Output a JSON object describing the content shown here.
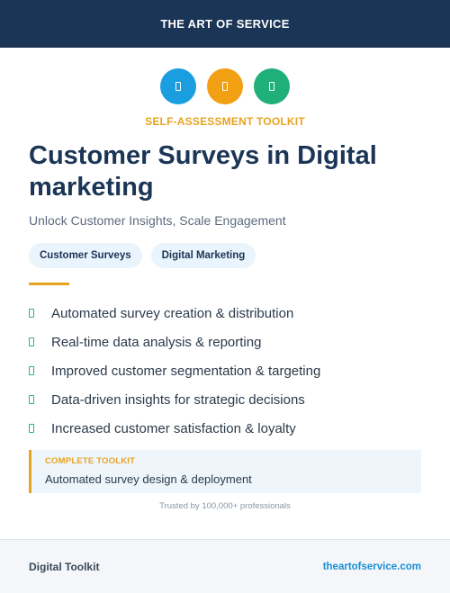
{
  "header": {
    "brand": "THE ART OF SERVICE"
  },
  "icons": [
    {
      "name": "blue-badge-icon",
      "color": "#1a9ee0"
    },
    {
      "name": "orange-badge-icon",
      "color": "#f0a012"
    },
    {
      "name": "green-badge-icon",
      "color": "#1fb07a"
    }
  ],
  "kicker": "SELF-ASSESSMENT TOOLKIT",
  "title": "Customer Surveys in Digital marketing",
  "subtitle": "Unlock Customer Insights, Scale Engagement",
  "tags": [
    "Customer Surveys",
    "Digital Marketing"
  ],
  "features": [
    "Automated survey creation & distribution",
    "Real-time data analysis & reporting",
    "Improved customer segmentation & targeting",
    "Data-driven insights for strategic decisions",
    "Increased customer satisfaction & loyalty"
  ],
  "callout": {
    "label": "COMPLETE TOOLKIT",
    "text": "Automated survey design & deployment"
  },
  "trusted": "Trusted by 100,000+ professionals",
  "footer": {
    "left": "Digital Toolkit",
    "right": "theartofservice.com"
  },
  "colors": {
    "navy": "#1b3556",
    "accent_orange": "#e8a321",
    "check_green": "#2ab37a",
    "link_blue": "#1a8fd6"
  }
}
